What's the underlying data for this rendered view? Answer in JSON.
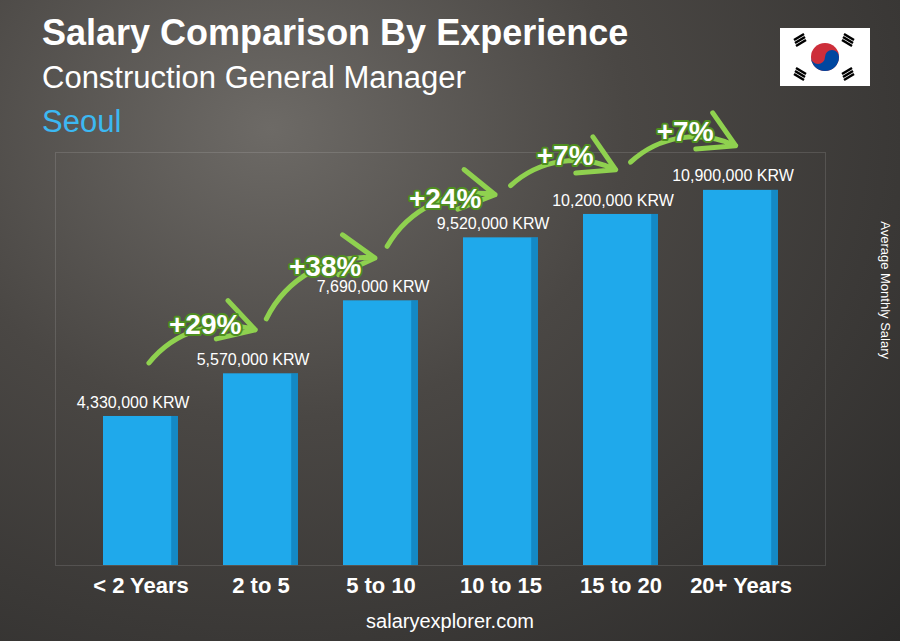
{
  "chart_data": {
    "type": "bar",
    "title": "Salary Comparison By Experience",
    "subtitle": "Construction General Manager",
    "location": "Seoul",
    "categories": [
      "< 2 Years",
      "2 to 5",
      "5 to 10",
      "10 to 15",
      "15 to 20",
      "20+ Years"
    ],
    "values": [
      4330000,
      5570000,
      7690000,
      9520000,
      10200000,
      10900000
    ],
    "value_labels": [
      "4,330,000 KRW",
      "5,570,000 KRW",
      "7,690,000 KRW",
      "9,520,000 KRW",
      "10,200,000 KRW",
      "10,900,000 KRW"
    ],
    "data_labels": true,
    "y_label": "Average Monthly Salary",
    "annotations": [
      {
        "from": "< 2 Years",
        "to": "2 to 5",
        "text": "+29%"
      },
      {
        "from": "2 to 5",
        "to": "5 to 10",
        "text": "+38%"
      },
      {
        "from": "5 to 10",
        "to": "10 to 15",
        "text": "+24%"
      },
      {
        "from": "10 to 15",
        "to": "15 to 20",
        "text": "+7%"
      },
      {
        "from": "15 to 20",
        "to": "20+ Years",
        "text": "+7%"
      }
    ],
    "source": "salaryexplorer.com",
    "color": "#1fa9eb",
    "ylim": [
      0,
      12000000
    ],
    "grid": false,
    "tick_labels": "x"
  }
}
